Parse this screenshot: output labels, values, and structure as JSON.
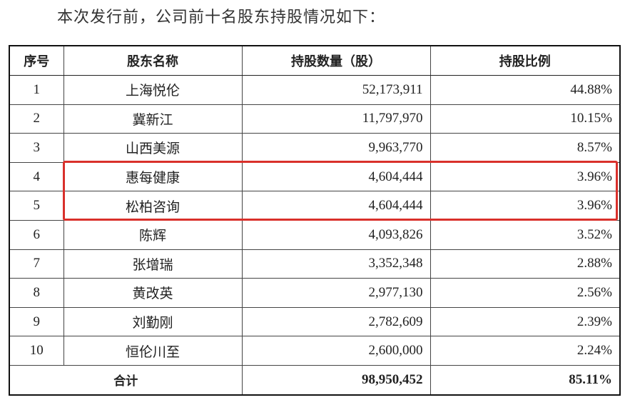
{
  "intro": "本次发行前，公司前十名股东持股情况如下：",
  "headers": [
    "序号",
    "股东名称",
    "持股数量（股）",
    "持股比例"
  ],
  "rows": [
    {
      "no": "1",
      "name": "上海悦伦",
      "shares": "52,173,911",
      "pct": "44.88%"
    },
    {
      "no": "2",
      "name": "冀新江",
      "shares": "11,797,970",
      "pct": "10.15%"
    },
    {
      "no": "3",
      "name": "山西美源",
      "shares": "9,963,770",
      "pct": "8.57%"
    },
    {
      "no": "4",
      "name": "惠每健康",
      "shares": "4,604,444",
      "pct": "3.96%"
    },
    {
      "no": "5",
      "name": "松柏咨询",
      "shares": "4,604,444",
      "pct": "3.96%"
    },
    {
      "no": "6",
      "name": "陈辉",
      "shares": "4,093,826",
      "pct": "3.52%"
    },
    {
      "no": "7",
      "name": "张增瑞",
      "shares": "3,352,348",
      "pct": "2.88%"
    },
    {
      "no": "8",
      "name": "黄改英",
      "shares": "2,977,130",
      "pct": "2.56%"
    },
    {
      "no": "9",
      "name": "刘勤刚",
      "shares": "2,782,609",
      "pct": "2.39%"
    },
    {
      "no": "10",
      "name": "恒伦川至",
      "shares": "2,600,000",
      "pct": "2.24%"
    }
  ],
  "total": {
    "label": "合计",
    "shares": "98,950,452",
    "pct": "85.11%"
  },
  "highlight_color": "#d9302b"
}
